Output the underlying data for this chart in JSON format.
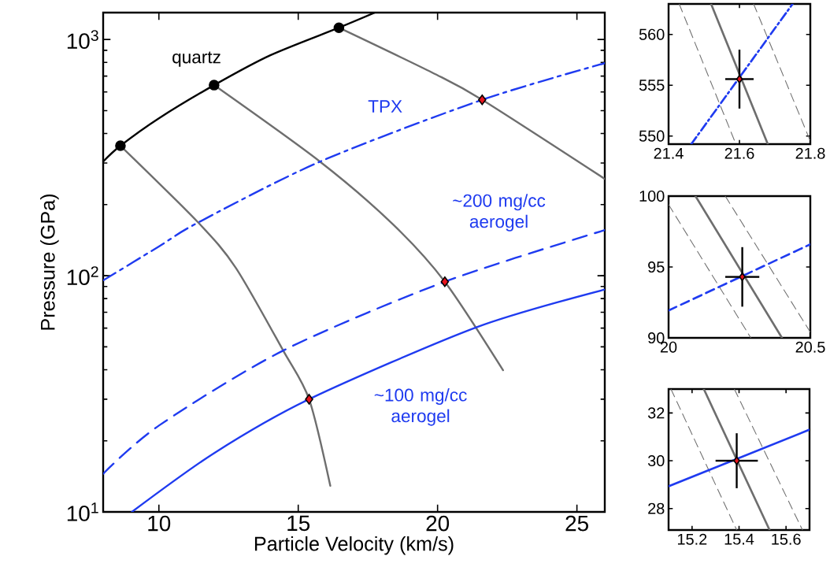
{
  "chart_data": [
    {
      "type": "line",
      "xlabel": "Particle Velocity (km/s)",
      "ylabel": "Pressure (GPa)",
      "log": "y",
      "xlim": [
        8,
        26
      ],
      "ylim": [
        10,
        1300
      ],
      "xticks": [
        10,
        15,
        20,
        25
      ],
      "yticks": [
        {
          "value": 10,
          "label": "10$^{1}$"
        },
        {
          "value": 100,
          "label": "10$^{2}$"
        },
        {
          "value": 1000,
          "label": "10$^{3}$"
        }
      ],
      "series": [
        {
          "name": "quartz",
          "type": "line",
          "color": "#000000",
          "line_style": "solid",
          "marker": "none",
          "x": [
            8,
            8.62,
            10,
            11.98,
            14,
            16.46,
            17.75
          ],
          "values": [
            304,
            355,
            464,
            641,
            858,
            1122,
            1300
          ]
        },
        {
          "type": "line",
          "color": "#6e6e6e",
          "line_style": "solid",
          "marker": "none",
          "x": [
            8.62,
            11.41,
            12.76,
            14.46,
            15.39,
            16.15
          ],
          "values": [
            355,
            168,
            108,
            48.2,
            30,
            12.9
          ]
        },
        {
          "type": "line",
          "color": "#6e6e6e",
          "line_style": "solid",
          "marker": "none",
          "x": [
            11.98,
            15.78,
            18.4,
            20.26,
            22.35
          ],
          "values": [
            641,
            304,
            165,
            94.3,
            39.8
          ]
        },
        {
          "type": "line",
          "color": "#6e6e6e",
          "line_style": "solid",
          "marker": "none",
          "x": [
            16.46,
            19.81,
            21.6,
            26
          ],
          "values": [
            1122,
            724,
            555.6,
            257
          ]
        },
        {
          "name": "TPX",
          "type": "line",
          "color": "#1f3bf0",
          "line_style": "dashdot",
          "marker": "none",
          "x": [
            8,
            10,
            11.41,
            15.78,
            21.6,
            26
          ],
          "values": [
            95.5,
            133,
            168,
            304,
            555.6,
            794
          ]
        },
        {
          "name": "~200 mg/cc aerogel",
          "type": "line",
          "color": "#1f3bf0",
          "line_style": "dashed",
          "marker": "none",
          "x": [
            8,
            10,
            14.46,
            20.26,
            26
          ],
          "values": [
            14.5,
            23.2,
            48.2,
            94.3,
            156
          ]
        },
        {
          "name": "~100 mg/cc aerogel",
          "type": "line",
          "color": "#1f3bf0",
          "line_style": "solid",
          "marker": "none",
          "x": [
            9.03,
            12,
            15.39,
            21.43,
            26
          ],
          "values": [
            10,
            17.8,
            30,
            60.7,
            87.4
          ]
        },
        {
          "type": "scatter",
          "color": "#000000",
          "marker": "circle",
          "x": [
            8.62,
            11.98,
            16.46
          ],
          "values": [
            355,
            641,
            1122
          ]
        },
        {
          "type": "scatter",
          "color": "#e8141e",
          "marker": "diamond",
          "x": [
            15.39,
            20.26,
            21.6
          ],
          "values": [
            30,
            94.3,
            555.6
          ]
        }
      ]
    },
    {
      "type": "line",
      "xlim": [
        21.4,
        21.8
      ],
      "ylim": [
        549.2,
        563
      ],
      "xticks": [
        21.4,
        21.6,
        21.8
      ],
      "yticks": [
        550,
        555,
        560
      ],
      "series": [
        {
          "type": "line",
          "color": "#6e6e6e",
          "line_style": "dashed",
          "marker": "none",
          "x": [
            21.43,
            21.59
          ],
          "values": [
            563,
            549.2
          ]
        },
        {
          "type": "line",
          "color": "#6e6e6e",
          "line_style": "dashed",
          "marker": "none",
          "x": [
            21.64,
            21.8
          ],
          "values": [
            563,
            549.5
          ]
        },
        {
          "type": "line",
          "color": "#6e6e6e",
          "line_style": "solid",
          "marker": "none",
          "x": [
            21.52,
            21.68
          ],
          "values": [
            563,
            549.2
          ]
        },
        {
          "type": "line",
          "color": "#1f3bf0",
          "line_style": "dashdot",
          "marker": "none",
          "x": [
            21.464,
            21.75
          ],
          "values": [
            549.2,
            563
          ]
        },
        {
          "type": "scatter",
          "color": "#e8141e",
          "marker": "diamond",
          "x": [
            21.6
          ],
          "values": [
            555.6
          ],
          "errors": [
            2.9
          ],
          "xerrors": [
            0.04
          ]
        }
      ]
    },
    {
      "type": "line",
      "xlim": [
        20,
        20.5
      ],
      "ylim": [
        90,
        100
      ],
      "xticks": [
        20,
        20.5
      ],
      "yticks": [
        90,
        95,
        100
      ],
      "series": [
        {
          "type": "line",
          "color": "#6e6e6e",
          "line_style": "dashed",
          "marker": "none",
          "x": [
            20,
            20.29
          ],
          "values": [
            99.4,
            90
          ]
        },
        {
          "type": "line",
          "color": "#6e6e6e",
          "line_style": "dashed",
          "marker": "none",
          "x": [
            20.2,
            20.5
          ],
          "values": [
            100,
            90.4
          ]
        },
        {
          "type": "line",
          "color": "#6e6e6e",
          "line_style": "solid",
          "marker": "none",
          "x": [
            20.095,
            20.4
          ],
          "values": [
            100,
            90
          ]
        },
        {
          "type": "line",
          "color": "#1f3bf0",
          "line_style": "dashed",
          "marker": "none",
          "x": [
            20,
            20.5
          ],
          "values": [
            91.93,
            96.6
          ]
        },
        {
          "type": "scatter",
          "color": "#e8141e",
          "marker": "diamond",
          "x": [
            20.26
          ],
          "values": [
            94.3
          ],
          "errors": [
            2.1
          ],
          "xerrors": [
            0.06
          ]
        }
      ]
    },
    {
      "type": "line",
      "xlim": [
        15.1,
        15.7
      ],
      "ylim": [
        27.1,
        33
      ],
      "xticks": [
        15.2,
        15.4,
        15.6
      ],
      "yticks": [
        28,
        30,
        32
      ],
      "series": [
        {
          "type": "line",
          "color": "#6e6e6e",
          "line_style": "dashed",
          "marker": "none",
          "x": [
            15.11,
            15.39
          ],
          "values": [
            33,
            27.1
          ]
        },
        {
          "type": "line",
          "color": "#6e6e6e",
          "line_style": "dashed",
          "marker": "none",
          "x": [
            15.38,
            15.67
          ],
          "values": [
            33,
            27.1
          ]
        },
        {
          "type": "line",
          "color": "#6e6e6e",
          "line_style": "solid",
          "marker": "none",
          "x": [
            15.25,
            15.53
          ],
          "values": [
            33,
            27.1
          ]
        },
        {
          "type": "line",
          "color": "#1f3bf0",
          "line_style": "solid",
          "marker": "none",
          "x": [
            15.1,
            15.7
          ],
          "values": [
            28.93,
            31.3
          ]
        },
        {
          "type": "scatter",
          "color": "#e8141e",
          "marker": "diamond",
          "x": [
            15.39
          ],
          "values": [
            30
          ],
          "errors": [
            1.15
          ],
          "xerrors": [
            0.09
          ]
        }
      ]
    }
  ]
}
